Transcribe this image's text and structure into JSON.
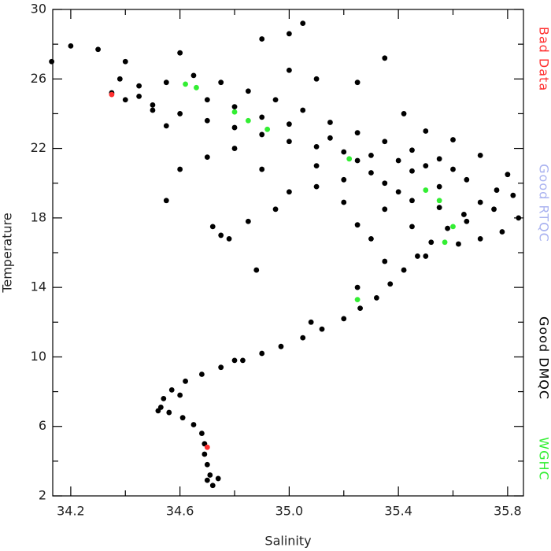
{
  "chart_data": {
    "type": "scatter",
    "xlabel": "Salinity",
    "ylabel": "Temperature",
    "xlim": [
      34.134,
      35.858
    ],
    "ylim": [
      2,
      30
    ],
    "xticks": [
      34.2,
      34.6,
      {
        "value": 35,
        "label": "35.0"
      },
      35.4,
      35.8
    ],
    "xminor": [
      34.4,
      34.8,
      35.2,
      35.6
    ],
    "yticks": [
      2,
      6,
      10,
      14,
      18,
      22,
      26,
      30
    ],
    "yminor": [
      4,
      8,
      12,
      16,
      20,
      24,
      28
    ],
    "series": [
      {
        "name": "Bad Data",
        "color": "#ff3030",
        "x": [
          34.35,
          34.7
        ],
        "values": [
          25.1,
          4.8
        ]
      },
      {
        "name": "Good RTQC",
        "color": "#a9b2f0",
        "x": [],
        "values": []
      },
      {
        "name": "Good DMQC",
        "color": "#000000",
        "x": [
          34.72,
          34.71,
          34.7,
          34.69,
          34.69,
          34.68,
          34.65,
          34.61,
          34.56,
          34.53,
          34.54,
          34.57,
          34.62,
          34.68,
          34.75,
          34.83,
          34.9,
          34.97,
          35.05,
          35.12,
          35.2,
          35.26,
          35.32,
          35.37,
          35.42,
          35.47,
          35.52,
          35.58,
          35.64,
          35.7,
          35.76,
          35.82,
          35.84,
          35.78,
          35.7,
          35.62,
          35.5,
          35.35,
          35.45,
          35.3,
          35.25,
          35.35,
          35.2,
          35.4,
          35.55,
          35.65,
          35.6,
          35.5,
          35.4,
          35.3,
          35.2,
          35.1,
          35.0,
          34.9,
          34.8,
          34.7,
          34.6,
          34.5,
          34.4,
          34.35,
          34.38,
          34.45,
          34.55,
          34.65,
          34.75,
          34.85,
          34.95,
          35.05,
          35.15,
          35.25,
          35.35,
          35.45,
          35.55,
          35.3,
          35.2,
          35.1,
          35.0,
          34.95,
          34.85,
          34.75,
          34.9,
          35.1,
          34.8,
          34.7,
          34.6,
          34.55,
          34.4,
          34.3,
          34.2,
          34.13,
          34.6,
          34.9,
          35.0,
          35.05,
          35.0,
          35.1,
          35.25,
          35.35,
          35.42,
          35.5,
          35.6,
          35.7,
          35.8,
          34.88,
          34.72,
          34.78,
          35.08,
          35.25,
          35.35,
          35.45,
          34.45,
          34.5,
          34.55,
          34.7,
          34.8,
          34.9,
          35.0,
          35.15,
          35.25,
          35.45,
          35.55,
          35.65,
          35.75,
          34.8,
          34.6,
          34.52,
          34.7,
          34.74
        ],
        "values": [
          2.6,
          3.2,
          3.8,
          4.4,
          5.0,
          5.6,
          6.1,
          6.5,
          6.8,
          7.1,
          7.6,
          8.1,
          8.6,
          9.0,
          9.4,
          9.8,
          10.2,
          10.6,
          11.1,
          11.6,
          12.2,
          12.8,
          13.4,
          14.2,
          15.0,
          15.8,
          16.6,
          17.4,
          18.2,
          18.9,
          19.6,
          19.3,
          18.0,
          17.2,
          16.8,
          16.5,
          15.8,
          15.5,
          17.5,
          16.8,
          17.6,
          18.5,
          18.9,
          19.5,
          19.8,
          20.2,
          20.8,
          21.0,
          21.3,
          21.6,
          21.8,
          22.1,
          22.4,
          22.8,
          23.2,
          23.6,
          24.0,
          24.5,
          24.8,
          25.2,
          26.0,
          25.6,
          25.8,
          26.2,
          25.8,
          25.3,
          24.8,
          24.2,
          23.5,
          22.9,
          22.4,
          21.9,
          21.4,
          20.6,
          20.2,
          19.8,
          19.5,
          18.5,
          17.8,
          17.0,
          20.8,
          21.0,
          22.0,
          21.5,
          20.8,
          19.0,
          27.0,
          27.7,
          27.9,
          27.0,
          27.5,
          28.3,
          28.6,
          29.2,
          26.5,
          26.0,
          25.8,
          27.2,
          24.0,
          23.0,
          22.5,
          21.6,
          20.5,
          15.0,
          17.5,
          16.8,
          12.0,
          14.0,
          20.0,
          19.0,
          25.0,
          24.2,
          23.3,
          24.8,
          24.4,
          23.8,
          23.4,
          22.6,
          21.3,
          20.7,
          18.6,
          17.8,
          18.5,
          9.8,
          7.8,
          6.9,
          2.9,
          3.0
        ]
      },
      {
        "name": "WGHC",
        "color": "#33ee33",
        "x": [
          34.62,
          34.66,
          34.8,
          34.85,
          34.92,
          35.22,
          35.5,
          35.55,
          35.6,
          35.57,
          35.25
        ],
        "values": [
          25.7,
          25.5,
          24.1,
          23.6,
          23.1,
          21.4,
          19.6,
          19.0,
          17.5,
          16.6,
          13.3
        ]
      }
    ]
  }
}
